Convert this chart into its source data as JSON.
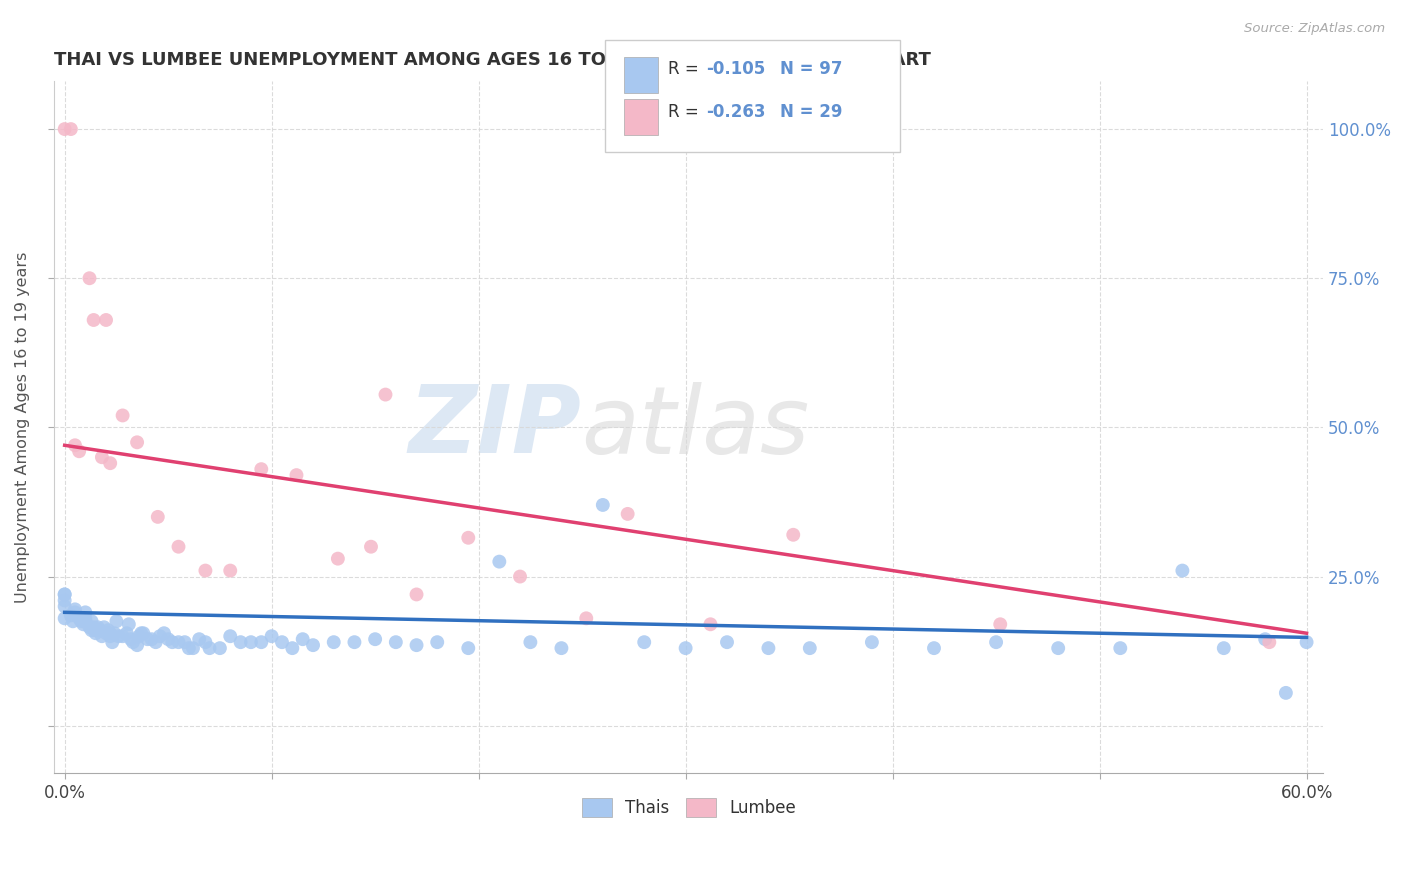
{
  "title": "THAI VS LUMBEE UNEMPLOYMENT AMONG AGES 16 TO 19 YEARS CORRELATION CHART",
  "source": "Source: ZipAtlas.com",
  "ylabel": "Unemployment Among Ages 16 to 19 years",
  "xlim": [
    -0.005,
    0.608
  ],
  "ylim": [
    -0.08,
    1.08
  ],
  "watermark_zip": "ZIP",
  "watermark_atlas": "atlas",
  "thai_color": "#a8c8f0",
  "lumbee_color": "#f4b8c8",
  "thai_line_color": "#3070c0",
  "lumbee_line_color": "#e04070",
  "background_color": "#ffffff",
  "grid_color": "#d8d8d8",
  "right_axis_color": "#6090d0",
  "thai_scatter_x": [
    0.0,
    0.0,
    0.0,
    0.0,
    0.0,
    0.003,
    0.004,
    0.005,
    0.005,
    0.007,
    0.008,
    0.009,
    0.01,
    0.01,
    0.01,
    0.01,
    0.012,
    0.013,
    0.013,
    0.014,
    0.015,
    0.015,
    0.016,
    0.017,
    0.018,
    0.019,
    0.02,
    0.021,
    0.022,
    0.022,
    0.023,
    0.024,
    0.025,
    0.026,
    0.028,
    0.03,
    0.031,
    0.032,
    0.033,
    0.035,
    0.036,
    0.037,
    0.038,
    0.04,
    0.042,
    0.044,
    0.046,
    0.048,
    0.05,
    0.052,
    0.055,
    0.058,
    0.06,
    0.062,
    0.065,
    0.068,
    0.07,
    0.075,
    0.08,
    0.085,
    0.09,
    0.095,
    0.1,
    0.105,
    0.11,
    0.115,
    0.12,
    0.13,
    0.14,
    0.15,
    0.16,
    0.17,
    0.18,
    0.195,
    0.21,
    0.225,
    0.24,
    0.26,
    0.28,
    0.3,
    0.32,
    0.34,
    0.36,
    0.39,
    0.42,
    0.45,
    0.48,
    0.51,
    0.54,
    0.56,
    0.58,
    0.59,
    0.6
  ],
  "thai_scatter_y": [
    0.2,
    0.21,
    0.22,
    0.22,
    0.18,
    0.185,
    0.175,
    0.19,
    0.195,
    0.18,
    0.175,
    0.17,
    0.175,
    0.18,
    0.175,
    0.19,
    0.165,
    0.16,
    0.175,
    0.165,
    0.16,
    0.155,
    0.165,
    0.16,
    0.15,
    0.165,
    0.155,
    0.16,
    0.15,
    0.155,
    0.14,
    0.155,
    0.175,
    0.15,
    0.15,
    0.155,
    0.17,
    0.145,
    0.14,
    0.135,
    0.15,
    0.155,
    0.155,
    0.145,
    0.145,
    0.14,
    0.15,
    0.155,
    0.145,
    0.14,
    0.14,
    0.14,
    0.13,
    0.13,
    0.145,
    0.14,
    0.13,
    0.13,
    0.15,
    0.14,
    0.14,
    0.14,
    0.15,
    0.14,
    0.13,
    0.145,
    0.135,
    0.14,
    0.14,
    0.145,
    0.14,
    0.135,
    0.14,
    0.13,
    0.275,
    0.14,
    0.13,
    0.37,
    0.14,
    0.13,
    0.14,
    0.13,
    0.13,
    0.14,
    0.13,
    0.14,
    0.13,
    0.13,
    0.26,
    0.13,
    0.145,
    0.055,
    0.14
  ],
  "lumbee_scatter_x": [
    0.0,
    0.003,
    0.005,
    0.007,
    0.012,
    0.014,
    0.018,
    0.02,
    0.022,
    0.028,
    0.035,
    0.045,
    0.055,
    0.068,
    0.08,
    0.095,
    0.112,
    0.132,
    0.148,
    0.155,
    0.17,
    0.195,
    0.22,
    0.252,
    0.272,
    0.312,
    0.352,
    0.452,
    0.582
  ],
  "lumbee_scatter_y": [
    1.0,
    1.0,
    0.47,
    0.46,
    0.75,
    0.68,
    0.45,
    0.68,
    0.44,
    0.52,
    0.475,
    0.35,
    0.3,
    0.26,
    0.26,
    0.43,
    0.42,
    0.28,
    0.3,
    0.555,
    0.22,
    0.315,
    0.25,
    0.18,
    0.355,
    0.17,
    0.32,
    0.17,
    0.14
  ],
  "thai_trend_x": [
    0.0,
    0.6
  ],
  "thai_trend_y": [
    0.19,
    0.148
  ],
  "lumbee_trend_x": [
    0.0,
    0.6
  ],
  "lumbee_trend_y": [
    0.47,
    0.155
  ]
}
